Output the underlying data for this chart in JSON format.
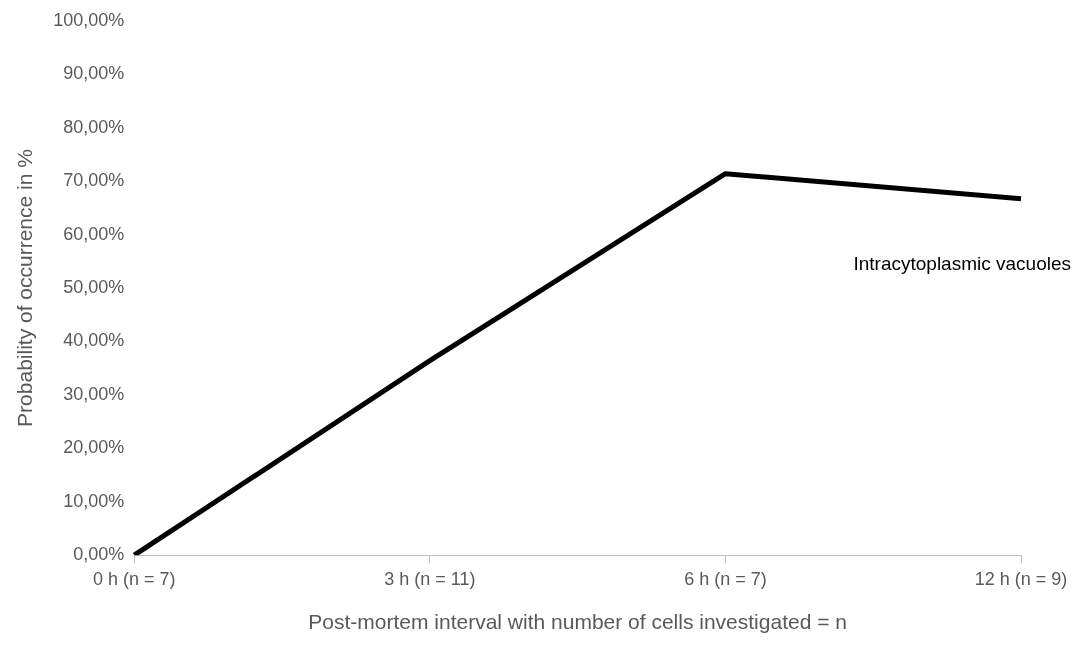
{
  "chart_data": {
    "type": "line",
    "xlabel": "Post-mortem interval with number of cells investigated = n",
    "ylabel": "Probability of occurrence in %",
    "categories": [
      "0 h (n = 7)",
      "3 h (n = 11)",
      "6 h (n = 7)",
      "12 h (n = 9)"
    ],
    "series": [
      {
        "name": "Intracytoplasmic vacuoles",
        "color": "#000000",
        "values": [
          0,
          36.4,
          71.4,
          66.7
        ]
      }
    ],
    "ylim": [
      0,
      100
    ],
    "yticks": [
      {
        "value": 0,
        "label": "0,00%"
      },
      {
        "value": 10,
        "label": "10,00%"
      },
      {
        "value": 20,
        "label": "20,00%"
      },
      {
        "value": 30,
        "label": "30,00%"
      },
      {
        "value": 40,
        "label": "40,00%"
      },
      {
        "value": 50,
        "label": "50,00%"
      },
      {
        "value": 60,
        "label": "60,00%"
      },
      {
        "value": 70,
        "label": "70,00%"
      },
      {
        "value": 80,
        "label": "80,00%"
      },
      {
        "value": 90,
        "label": "90,00%"
      },
      {
        "value": 100,
        "label": "100,00%"
      }
    ],
    "marker": "none",
    "line_style": "solid"
  }
}
